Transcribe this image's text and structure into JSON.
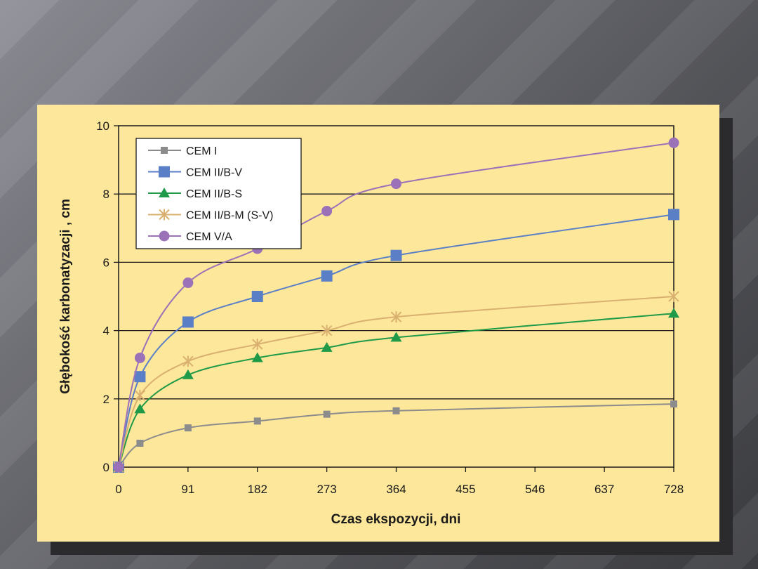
{
  "chart_data": {
    "type": "line",
    "title": "",
    "xlabel": "Czas ekspozycji, dni",
    "ylabel": "Głębokość karbonatyzacji , cm",
    "xlim": [
      0,
      728
    ],
    "ylim": [
      0,
      10
    ],
    "xticks": [
      0,
      91,
      182,
      273,
      364,
      455,
      546,
      637,
      728
    ],
    "yticks": [
      0,
      2,
      4,
      6,
      8,
      10
    ],
    "grid": "horizontal",
    "legend_position": "top-left",
    "x": [
      0,
      28,
      91,
      182,
      273,
      364,
      728
    ],
    "series": [
      {
        "name": "CEM I",
        "color": "#8c8c8c",
        "marker": "square-small",
        "values": [
          0,
          0.7,
          1.15,
          1.35,
          1.55,
          1.65,
          1.85
        ]
      },
      {
        "name": "CEM II/B-V",
        "color": "#5b7fc7",
        "marker": "square",
        "values": [
          0,
          2.65,
          4.25,
          5.0,
          5.6,
          6.2,
          7.4
        ]
      },
      {
        "name": "CEM II/B-S",
        "color": "#1f9a48",
        "marker": "triangle",
        "values": [
          0,
          1.7,
          2.7,
          3.2,
          3.5,
          3.8,
          4.5
        ]
      },
      {
        "name": "CEM II/B-M (S-V)",
        "color": "#d9b070",
        "marker": "asterisk",
        "values": [
          0,
          2.1,
          3.1,
          3.6,
          4.0,
          4.4,
          5.0
        ]
      },
      {
        "name": "CEM V/A",
        "color": "#9b72b8",
        "marker": "circle",
        "values": [
          0,
          3.2,
          5.4,
          6.4,
          7.5,
          8.3,
          9.5
        ]
      }
    ]
  }
}
